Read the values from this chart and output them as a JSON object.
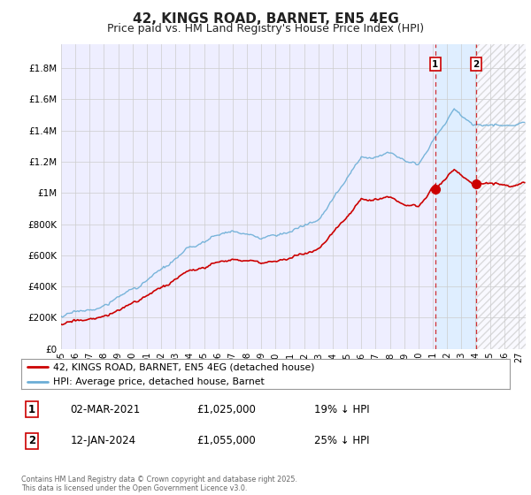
{
  "title": "42, KINGS ROAD, BARNET, EN5 4EG",
  "subtitle": "Price paid vs. HM Land Registry's House Price Index (HPI)",
  "title_fontsize": 11,
  "subtitle_fontsize": 9,
  "ylabel_ticks": [
    "£0",
    "£200K",
    "£400K",
    "£600K",
    "£800K",
    "£1M",
    "£1.2M",
    "£1.4M",
    "£1.6M",
    "£1.8M"
  ],
  "ytick_values": [
    0,
    200000,
    400000,
    600000,
    800000,
    1000000,
    1200000,
    1400000,
    1600000,
    1800000
  ],
  "ylim": [
    0,
    1950000
  ],
  "xlim_start": 1995.0,
  "xlim_end": 2027.5,
  "hpi_color": "#6baed6",
  "price_color": "#cc0000",
  "vline_color": "#cc0000",
  "grid_color": "#cccccc",
  "background_color": "#ffffff",
  "plot_bg_color": "#eeeeff",
  "shade_color": "#ddeeff",
  "hatch_color": "#cccccc",
  "legend_label_price": "42, KINGS ROAD, BARNET, EN5 4EG (detached house)",
  "legend_label_hpi": "HPI: Average price, detached house, Barnet",
  "sale1_label": "1",
  "sale1_date": "02-MAR-2021",
  "sale1_price": "£1,025,000",
  "sale1_note": "19% ↓ HPI",
  "sale1_x": 2021.17,
  "sale1_y": 1025000,
  "sale2_label": "2",
  "sale2_date": "12-JAN-2024",
  "sale2_price": "£1,055,000",
  "sale2_note": "25% ↓ HPI",
  "sale2_x": 2024.04,
  "sale2_y": 1055000,
  "footnote": "Contains HM Land Registry data © Crown copyright and database right 2025.\nThis data is licensed under the Open Government Licence v3.0.",
  "xtick_years": [
    1995,
    1996,
    1997,
    1998,
    1999,
    2000,
    2001,
    2002,
    2003,
    2004,
    2005,
    2006,
    2007,
    2008,
    2009,
    2010,
    2011,
    2012,
    2013,
    2014,
    2015,
    2016,
    2017,
    2018,
    2019,
    2020,
    2021,
    2022,
    2023,
    2024,
    2025,
    2026,
    2027
  ]
}
